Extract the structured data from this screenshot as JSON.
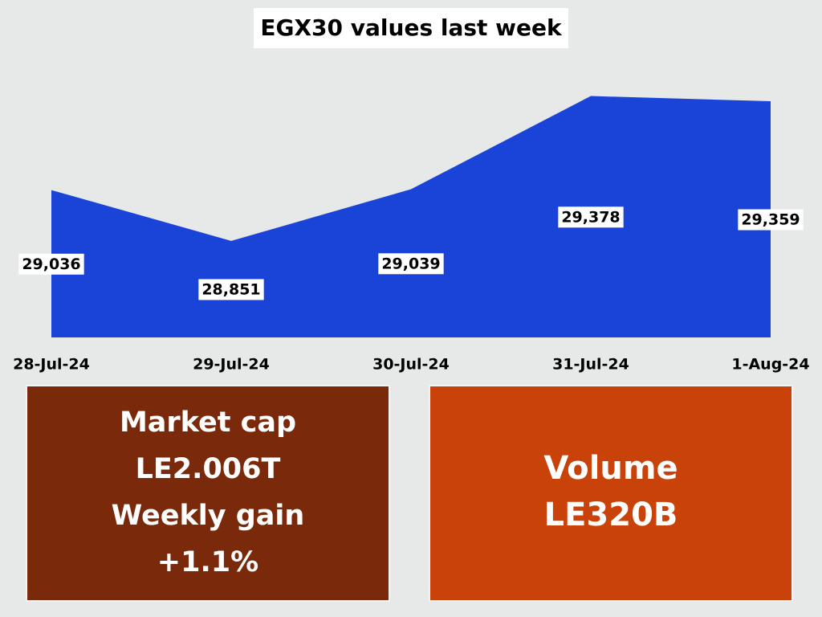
{
  "chart_data": {
    "type": "area",
    "title": "EGX30 values last week",
    "categories": [
      "28-Jul-24",
      "29-Jul-24",
      "30-Jul-24",
      "31-Jul-24",
      "1-Aug-24"
    ],
    "values": [
      29036,
      28851,
      29039,
      29378,
      29359
    ],
    "value_labels": [
      "29,036",
      "28,851",
      "29,039",
      "29,378",
      "29,359"
    ],
    "color": "#1a44d8",
    "ylim": [
      28500,
      29400
    ]
  },
  "panels": [
    {
      "lines": [
        "Market cap",
        "LE2.006T",
        "Weekly gain",
        "+1.1%"
      ],
      "color": "#7a2a0a"
    },
    {
      "lines": [
        "Volume",
        "LE320B"
      ],
      "color": "#c8420a"
    }
  ]
}
